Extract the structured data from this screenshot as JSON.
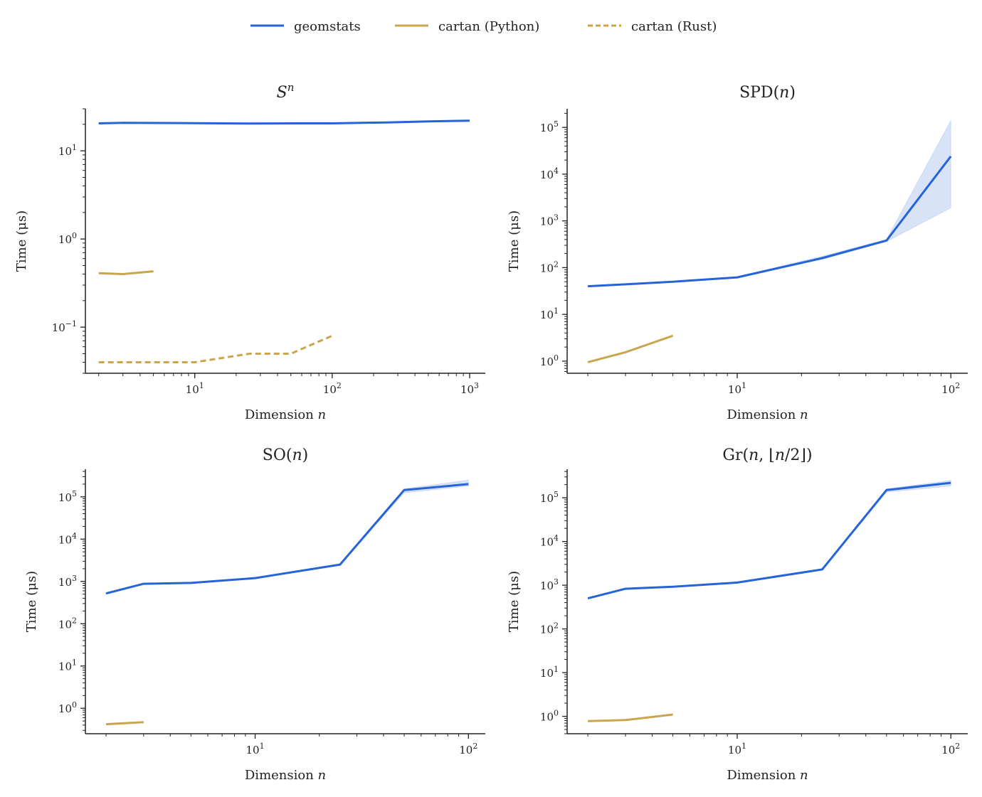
{
  "legend": {
    "placement": "top-center",
    "entries": [
      {
        "key": "geomstats",
        "label": "geomstats",
        "color": "#2563d9",
        "dash": "solid"
      },
      {
        "key": "cartan_py",
        "label": "cartan (Python)",
        "color": "#c9a64e",
        "dash": "solid"
      },
      {
        "key": "cartan_rust",
        "label": "cartan (Rust)",
        "color": "#c9a64e",
        "dash": "dashed"
      }
    ]
  },
  "colors": {
    "geomstats": "#2563d9",
    "cartan": "#c9a64e",
    "band": "#2563d9",
    "axis": "#222222"
  },
  "chart_data": [
    {
      "type": "line",
      "title_base": "S",
      "title_sup": "n",
      "xlabel_text": "Dimension",
      "xlabel_var": "n",
      "ylabel": "Time (μs)",
      "xscale": "log",
      "yscale": "log",
      "xlim": [
        1.6,
        1300
      ],
      "ylim": [
        0.03,
        30
      ],
      "xticks": [
        {
          "base": "10",
          "exp": "1",
          "v": 10
        },
        {
          "base": "10",
          "exp": "2",
          "v": 100
        },
        {
          "base": "10",
          "exp": "3",
          "v": 1000
        }
      ],
      "yticks": [
        {
          "base": "10",
          "exp": "−1",
          "v": 0.1
        },
        {
          "base": "10",
          "exp": "0",
          "v": 1
        },
        {
          "base": "10",
          "exp": "1",
          "v": 10
        }
      ],
      "series": [
        {
          "key": "geomstats",
          "x": [
            2,
            3,
            10,
            25,
            50,
            100,
            250,
            500,
            1000
          ],
          "y": [
            20.5,
            20.8,
            20.6,
            20.4,
            20.5,
            20.5,
            21.0,
            21.6,
            22.0
          ]
        },
        {
          "key": "cartan_py",
          "x": [
            2,
            3,
            5
          ],
          "y": [
            0.41,
            0.4,
            0.43
          ]
        },
        {
          "key": "cartan_rust",
          "x": [
            2,
            3,
            5,
            10,
            25,
            50,
            100
          ],
          "y": [
            0.04,
            0.04,
            0.04,
            0.04,
            0.05,
            0.05,
            0.08
          ]
        }
      ]
    },
    {
      "type": "line",
      "title_base": "SPD(",
      "title_var": "n",
      "title_end": ")",
      "xlabel_text": "Dimension",
      "xlabel_var": "n",
      "ylabel": "Time (μs)",
      "xscale": "log",
      "yscale": "log",
      "xlim": [
        1.6,
        120
      ],
      "ylim": [
        0.55,
        250000
      ],
      "xticks": [
        {
          "base": "10",
          "exp": "1",
          "v": 10
        },
        {
          "base": "10",
          "exp": "2",
          "v": 100
        }
      ],
      "yticks": [
        {
          "base": "10",
          "exp": "0",
          "v": 1
        },
        {
          "base": "10",
          "exp": "1",
          "v": 10
        },
        {
          "base": "10",
          "exp": "2",
          "v": 100
        },
        {
          "base": "10",
          "exp": "3",
          "v": 1000
        },
        {
          "base": "10",
          "exp": "4",
          "v": 10000
        },
        {
          "base": "10",
          "exp": "5",
          "v": 100000
        }
      ],
      "series": [
        {
          "key": "geomstats",
          "x": [
            2,
            3,
            5,
            10,
            25,
            50,
            100
          ],
          "y": [
            40,
            44,
            50,
            62,
            160,
            380,
            24000
          ],
          "band_low": [
            39,
            43,
            49,
            60,
            150,
            360,
            1900
          ],
          "band_high": [
            41,
            45,
            51,
            64,
            175,
            400,
            140000
          ]
        },
        {
          "key": "cartan_py",
          "x": [
            2,
            3,
            5
          ],
          "y": [
            0.95,
            1.55,
            3.5
          ]
        }
      ]
    },
    {
      "type": "line",
      "title_base": "SO(",
      "title_var": "n",
      "title_end": ")",
      "xlabel_text": "Dimension",
      "xlabel_var": "n",
      "ylabel": "Time (μs)",
      "xscale": "log",
      "yscale": "log",
      "xlim": [
        1.6,
        120
      ],
      "ylim": [
        0.25,
        450000
      ],
      "xticks": [
        {
          "base": "10",
          "exp": "1",
          "v": 10
        },
        {
          "base": "10",
          "exp": "2",
          "v": 100
        }
      ],
      "yticks": [
        {
          "base": "10",
          "exp": "0",
          "v": 1
        },
        {
          "base": "10",
          "exp": "1",
          "v": 10
        },
        {
          "base": "10",
          "exp": "2",
          "v": 100
        },
        {
          "base": "10",
          "exp": "3",
          "v": 1000
        },
        {
          "base": "10",
          "exp": "4",
          "v": 10000
        },
        {
          "base": "10",
          "exp": "5",
          "v": 100000
        }
      ],
      "series": [
        {
          "key": "geomstats",
          "x": [
            2,
            3,
            5,
            10,
            25,
            50,
            100
          ],
          "y": [
            520,
            880,
            920,
            1200,
            2500,
            145000,
            200000
          ],
          "band_low": [
            510,
            860,
            900,
            1180,
            2450,
            125000,
            180000
          ],
          "band_high": [
            530,
            900,
            940,
            1220,
            2550,
            155000,
            250000
          ]
        },
        {
          "key": "cartan_py",
          "x": [
            2,
            3
          ],
          "y": [
            0.42,
            0.47
          ]
        }
      ]
    },
    {
      "type": "line",
      "title_base": "Gr(",
      "title_var": "n",
      "title_mid": ", ⌊",
      "title_var2": "n",
      "title_end": "/2⌋)",
      "xlabel_text": "Dimension",
      "xlabel_var": "n",
      "ylabel": "Time (μs)",
      "xscale": "log",
      "yscale": "log",
      "xlim": [
        1.6,
        120
      ],
      "ylim": [
        0.4,
        450000
      ],
      "xticks": [
        {
          "base": "10",
          "exp": "1",
          "v": 10
        },
        {
          "base": "10",
          "exp": "2",
          "v": 100
        }
      ],
      "yticks": [
        {
          "base": "10",
          "exp": "0",
          "v": 1
        },
        {
          "base": "10",
          "exp": "1",
          "v": 10
        },
        {
          "base": "10",
          "exp": "2",
          "v": 100
        },
        {
          "base": "10",
          "exp": "3",
          "v": 1000
        },
        {
          "base": "10",
          "exp": "4",
          "v": 10000
        },
        {
          "base": "10",
          "exp": "5",
          "v": 100000
        }
      ],
      "series": [
        {
          "key": "geomstats",
          "x": [
            2,
            3,
            5,
            10,
            25,
            50,
            100
          ],
          "y": [
            500,
            830,
            920,
            1150,
            2300,
            150000,
            220000
          ],
          "band_low": [
            490,
            810,
            900,
            1130,
            2250,
            135000,
            185000
          ],
          "band_high": [
            510,
            850,
            940,
            1170,
            2350,
            160000,
            250000
          ]
        },
        {
          "key": "cartan_py",
          "x": [
            2,
            3,
            5
          ],
          "y": [
            0.78,
            0.82,
            1.1
          ]
        }
      ]
    }
  ]
}
